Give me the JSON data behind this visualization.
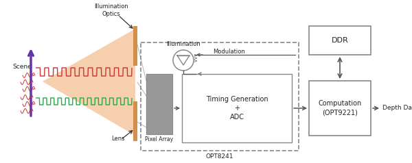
{
  "bg_color": "#ffffff",
  "fig_width": 6.0,
  "fig_height": 2.38,
  "scene_label": "Scene",
  "illumination_optics_label": "Illumination\nOptics",
  "lens_label": "Lens",
  "illumination_led_label": "Illumination",
  "modulation_label": "Modulation",
  "pixel_array_label": "Pixel Array",
  "timing_label": "Timing Generation\n+\nADC",
  "opt8241_label": "OPT8241",
  "ddr_label": "DDR",
  "computation_label": "Computation\n(OPT9221)",
  "depth_label": "Depth Data",
  "cone_color": "#f5c8a0",
  "optics_color": "#d4904a",
  "wave_red": "#cc3333",
  "wave_green": "#22aa44",
  "arrow_color": "#333333",
  "box_edge": "#888888",
  "dashed_color": "#888888",
  "purple_color": "#6633aa",
  "pixel_gray": "#999999",
  "text_color": "#222222",
  "line_color": "#555555"
}
